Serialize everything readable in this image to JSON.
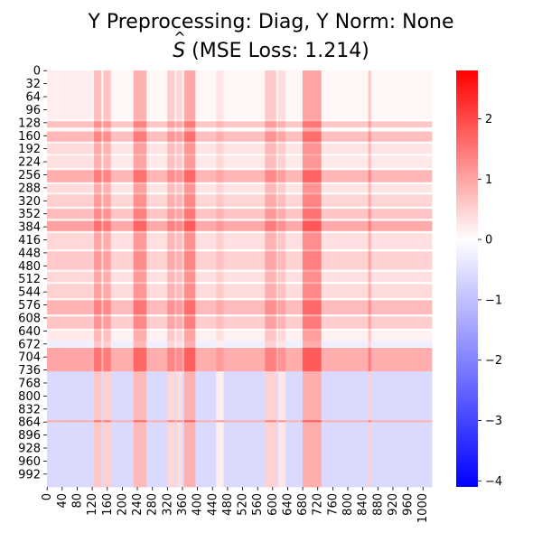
{
  "title_line1": "Y Preprocessing: Diag, Y Norm: None",
  "title_line2_symbol": "S",
  "title_line2_rest": " (MSE Loss: 1.214)",
  "colors": {
    "min": "#0000ff",
    "zero": "#ffffff",
    "max": "#ff0000"
  },
  "chart_data": {
    "type": "heatmap",
    "title": "Y Preprocessing: Diag, Y Norm: None — Ŝ (MSE Loss: 1.214)",
    "xlabel": "",
    "ylabel": "",
    "matrix_size": [
      1024,
      1024
    ],
    "x_ticks": [
      "0",
      "40",
      "80",
      "120",
      "160",
      "200",
      "240",
      "280",
      "320",
      "360",
      "400",
      "440",
      "480",
      "520",
      "560",
      "600",
      "640",
      "680",
      "720",
      "760",
      "800",
      "840",
      "880",
      "920",
      "960",
      "1000"
    ],
    "y_ticks": [
      "0",
      "32",
      "64",
      "96",
      "128",
      "160",
      "192",
      "224",
      "256",
      "288",
      "320",
      "352",
      "384",
      "416",
      "448",
      "480",
      "512",
      "544",
      "576",
      "608",
      "640",
      "672",
      "704",
      "736",
      "768",
      "800",
      "832",
      "864",
      "896",
      "928",
      "960",
      "992"
    ],
    "colorbar": {
      "range": [
        -4.1,
        2.8
      ],
      "ticks": [
        "2",
        "1",
        "0",
        "−1",
        "−2",
        "−3",
        "−4"
      ],
      "cmap": "bwr"
    },
    "row_bands": [
      {
        "start": 0,
        "end": 120,
        "value": 0.1
      },
      {
        "start": 125,
        "end": 140,
        "value": 0.6
      },
      {
        "start": 150,
        "end": 175,
        "value": 0.7
      },
      {
        "start": 180,
        "end": 205,
        "value": 0.3
      },
      {
        "start": 210,
        "end": 240,
        "value": 0.25
      },
      {
        "start": 245,
        "end": 275,
        "value": 0.8
      },
      {
        "start": 280,
        "end": 300,
        "value": 0.3
      },
      {
        "start": 305,
        "end": 335,
        "value": 0.45
      },
      {
        "start": 340,
        "end": 365,
        "value": 0.65
      },
      {
        "start": 370,
        "end": 395,
        "value": 0.95
      },
      {
        "start": 400,
        "end": 440,
        "value": 0.35
      },
      {
        "start": 445,
        "end": 490,
        "value": 0.5
      },
      {
        "start": 495,
        "end": 520,
        "value": 0.35
      },
      {
        "start": 525,
        "end": 560,
        "value": 0.4
      },
      {
        "start": 565,
        "end": 600,
        "value": 0.75
      },
      {
        "start": 605,
        "end": 635,
        "value": 0.55
      },
      {
        "start": 640,
        "end": 665,
        "value": 0.15
      },
      {
        "start": 665,
        "end": 680,
        "value": -0.25
      },
      {
        "start": 682,
        "end": 740,
        "value": 0.9
      },
      {
        "start": 740,
        "end": 860,
        "value": -0.6
      },
      {
        "start": 860,
        "end": 865,
        "value": 0.8
      },
      {
        "start": 865,
        "end": 1024,
        "value": -0.6
      }
    ],
    "column_bands": [
      {
        "start": 0,
        "end": 120,
        "value": 0.1
      },
      {
        "start": 125,
        "end": 145,
        "value": 0.7
      },
      {
        "start": 150,
        "end": 170,
        "value": 0.6
      },
      {
        "start": 230,
        "end": 265,
        "value": 0.85
      },
      {
        "start": 320,
        "end": 340,
        "value": 0.5
      },
      {
        "start": 345,
        "end": 360,
        "value": 0.4
      },
      {
        "start": 365,
        "end": 395,
        "value": 0.95
      },
      {
        "start": 450,
        "end": 470,
        "value": 0.2
      },
      {
        "start": 580,
        "end": 610,
        "value": 0.55
      },
      {
        "start": 615,
        "end": 635,
        "value": 0.3
      },
      {
        "start": 680,
        "end": 730,
        "value": 1.0
      },
      {
        "start": 855,
        "end": 862,
        "value": 0.6
      }
    ]
  }
}
